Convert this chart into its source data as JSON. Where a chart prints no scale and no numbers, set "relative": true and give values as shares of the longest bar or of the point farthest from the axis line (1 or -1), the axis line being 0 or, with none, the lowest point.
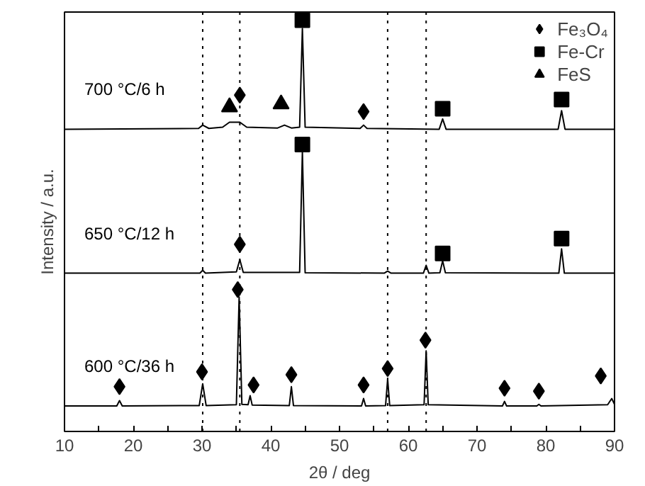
{
  "chart_data": {
    "type": "line",
    "xlabel": "2θ / deg",
    "ylabel": "Intensity / a.u.",
    "relative": true,
    "xlim": [
      10,
      90
    ],
    "xticks": [
      10,
      {
        "value": 15,
        "label": null
      },
      20,
      {
        "value": 25,
        "label": null
      },
      30,
      {
        "value": 35,
        "label": null
      },
      40,
      {
        "value": 45,
        "label": null
      },
      50,
      {
        "value": 55,
        "label": null
      },
      60,
      {
        "value": 65,
        "label": null
      },
      70,
      {
        "value": 75,
        "label": null
      },
      80,
      {
        "value": 85,
        "label": null
      },
      90
    ],
    "grid": false,
    "legend": "top right",
    "line_style": "solid",
    "series": [
      {
        "color": "#000000",
        "x": [
          10,
          29.5,
          30.1,
          31,
          33,
          34,
          35.5,
          36.5,
          41,
          42,
          43,
          44.2,
          44.6,
          45,
          53,
          53.5,
          54,
          64.5,
          65,
          65.5,
          81.8,
          82.3,
          82.8,
          90
        ],
        "values": [
          0.735,
          0.737,
          0.745,
          0.737,
          0.74,
          0.752,
          0.752,
          0.74,
          0.738,
          0.745,
          0.738,
          0.74,
          0.98,
          0.74,
          0.737,
          0.745,
          0.737,
          0.735,
          0.76,
          0.735,
          0.735,
          0.78,
          0.735,
          0.735
        ]
      },
      {
        "color": "#000000",
        "x": [
          10,
          29.7,
          30.1,
          30.5,
          35,
          35.5,
          36,
          44.2,
          44.6,
          45,
          56.5,
          57,
          57.5,
          62.2,
          62.6,
          63,
          64.6,
          65,
          65.4,
          81.9,
          82.3,
          82.7,
          90
        ],
        "values": [
          0.385,
          0.385,
          0.392,
          0.385,
          0.388,
          0.418,
          0.387,
          0.387,
          0.68,
          0.386,
          0.385,
          0.39,
          0.385,
          0.385,
          0.404,
          0.385,
          0.386,
          0.415,
          0.386,
          0.385,
          0.444,
          0.385,
          0.385
        ]
      },
      {
        "color": "#000000",
        "x": [
          10,
          17.6,
          18,
          18.4,
          29.6,
          30.1,
          30.6,
          35,
          35.4,
          35.8,
          36.7,
          37,
          37.3,
          42.7,
          43,
          43.3,
          53.2,
          53.5,
          53.8,
          56.7,
          57,
          57.3,
          62.3,
          62.6,
          62.9,
          73.7,
          74,
          74.3,
          78.7,
          79,
          79.3,
          89,
          89.6,
          90
        ],
        "values": [
          0.062,
          0.062,
          0.075,
          0.062,
          0.063,
          0.116,
          0.063,
          0.065,
          0.327,
          0.066,
          0.065,
          0.087,
          0.064,
          0.063,
          0.109,
          0.063,
          0.062,
          0.08,
          0.062,
          0.063,
          0.127,
          0.063,
          0.065,
          0.196,
          0.065,
          0.062,
          0.073,
          0.062,
          0.062,
          0.066,
          0.062,
          0.065,
          0.08,
          0.066
        ]
      },
      {
        "type": "scatter",
        "name": "Fe₃O₄",
        "color": "#000000",
        "marker": "diamond",
        "x": [
          35.5,
          53.5,
          35.5,
          18,
          30,
          35.2,
          37.5,
          43,
          53.5,
          57,
          62.5,
          74,
          79,
          88
        ],
        "values": [
          0.818,
          0.778,
          0.455,
          0.109,
          0.145,
          0.345,
          0.113,
          0.138,
          0.113,
          0.153,
          0.222,
          0.105,
          0.098,
          0.135
        ]
      },
      {
        "type": "scatter",
        "name": "Fe-Cr",
        "color": "#000000",
        "marker": "square",
        "x": [
          44.6,
          65,
          82.3,
          44.6,
          65,
          82.3
        ],
        "values": [
          1.0,
          0.785,
          0.807,
          0.698,
          0.433,
          0.469
        ]
      },
      {
        "type": "scatter",
        "name": "FeS",
        "color": "#000000",
        "marker": "triangle",
        "x": [
          34,
          41.5
        ],
        "values": [
          0.789,
          0.796
        ]
      }
    ],
    "ref_lines": [
      {
        "axis": "x",
        "value": 30.1,
        "color": "#000000",
        "line_style": "dotted"
      },
      {
        "axis": "x",
        "value": 35.5,
        "color": "#000000",
        "line_style": "dotted"
      },
      {
        "axis": "x",
        "value": 57,
        "color": "#000000",
        "line_style": "dotted"
      },
      {
        "axis": "x",
        "value": 62.6,
        "color": "#000000",
        "line_style": "dotted"
      }
    ],
    "annotations": [
      "700 °C/6 h",
      "650 °C/12 h",
      "600 °C/36 h"
    ]
  }
}
